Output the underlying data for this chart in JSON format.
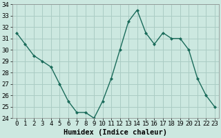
{
  "x": [
    0,
    1,
    2,
    3,
    4,
    5,
    6,
    7,
    8,
    9,
    10,
    11,
    12,
    13,
    14,
    15,
    16,
    17,
    18,
    19,
    20,
    21,
    22,
    23
  ],
  "y": [
    31.5,
    30.5,
    29.5,
    29.0,
    28.5,
    27.0,
    25.5,
    24.5,
    24.5,
    24.0,
    25.5,
    27.5,
    30.0,
    32.5,
    33.5,
    31.5,
    30.5,
    31.5,
    31.0,
    31.0,
    30.0,
    27.5,
    26.0,
    25.0
  ],
  "line_color": "#1a6b5a",
  "marker": "D",
  "marker_size": 2.0,
  "bg_color": "#cce8e0",
  "grid_color": "#aaccC4",
  "plot_bg": "#cce8e0",
  "xlabel": "Humidex (Indice chaleur)",
  "ylim": [
    24,
    34
  ],
  "yticks": [
    24,
    25,
    26,
    27,
    28,
    29,
    30,
    31,
    32,
    33,
    34
  ],
  "xticks": [
    0,
    1,
    2,
    3,
    4,
    5,
    6,
    7,
    8,
    9,
    10,
    11,
    12,
    13,
    14,
    15,
    16,
    17,
    18,
    19,
    20,
    21,
    22,
    23
  ],
  "xtick_labels": [
    "0",
    "1",
    "2",
    "3",
    "4",
    "5",
    "6",
    "7",
    "8",
    "9",
    "10",
    "11",
    "12",
    "13",
    "14",
    "15",
    "16",
    "17",
    "18",
    "19",
    "20",
    "21",
    "22",
    "23"
  ],
  "tick_fontsize": 6.5,
  "label_fontsize": 7.5
}
